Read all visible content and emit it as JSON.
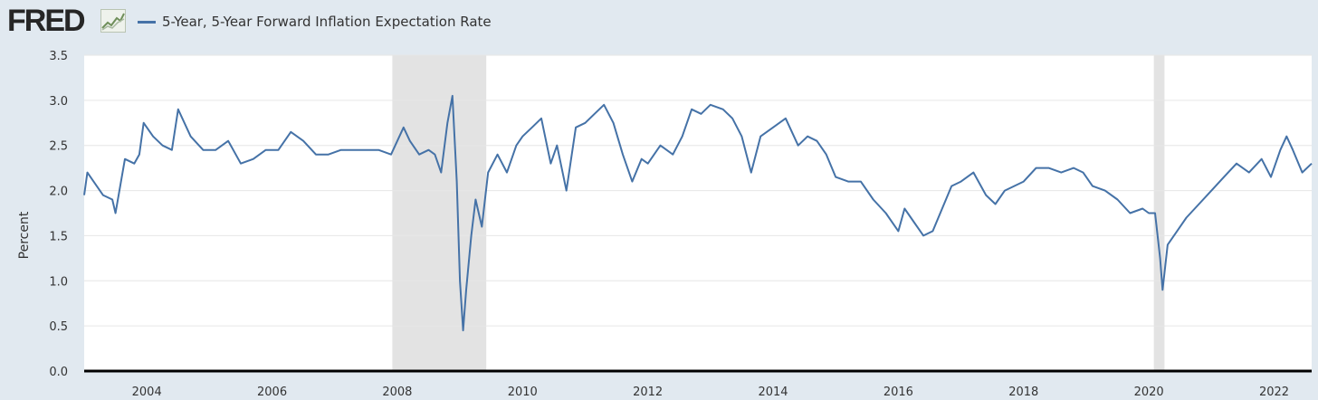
{
  "header": {
    "logo_text": "FRED",
    "logo_icon": "line-chart-icon",
    "legend_label": "5-Year, 5-Year Forward Inflation Expectation Rate"
  },
  "chart_data": {
    "type": "line",
    "title": "",
    "xlabel": "",
    "ylabel": "Percent",
    "xlim": [
      2003.0,
      2022.6
    ],
    "ylim": [
      0,
      3.5
    ],
    "grid": true,
    "legend": "top-left",
    "series_color": "#4572a7",
    "recession_color": "#e3e3e3",
    "yticks": [
      "0.0",
      "0.5",
      "1.0",
      "1.5",
      "2.0",
      "2.5",
      "3.0",
      "3.5"
    ],
    "xticks": [
      "2004",
      "2006",
      "2008",
      "2010",
      "2012",
      "2014",
      "2016",
      "2018",
      "2020",
      "2022"
    ],
    "recessions": [
      [
        2007.92,
        2009.42
      ],
      [
        2020.08,
        2020.25
      ]
    ],
    "series": [
      {
        "x": [
          2003.0,
          2003.05,
          2003.15,
          2003.3,
          2003.45,
          2003.5,
          2003.65,
          2003.8,
          2003.88,
          2003.95,
          2004.1,
          2004.25,
          2004.4,
          2004.5,
          2004.7,
          2004.9,
          2005.1,
          2005.3,
          2005.5,
          2005.7,
          2005.9,
          2006.1,
          2006.3,
          2006.5,
          2006.7,
          2006.9,
          2007.1,
          2007.3,
          2007.5,
          2007.7,
          2007.9,
          2008.1,
          2008.2,
          2008.35,
          2008.5,
          2008.6,
          2008.7,
          2008.8,
          2008.88,
          2008.95,
          2009.0,
          2009.05,
          2009.1,
          2009.18,
          2009.25,
          2009.35,
          2009.45,
          2009.6,
          2009.75,
          2009.9,
          2010.0,
          2010.15,
          2010.3,
          2010.45,
          2010.55,
          2010.7,
          2010.85,
          2011.0,
          2011.15,
          2011.3,
          2011.45,
          2011.6,
          2011.75,
          2011.9,
          2012.0,
          2012.2,
          2012.4,
          2012.55,
          2012.7,
          2012.85,
          2013.0,
          2013.2,
          2013.35,
          2013.5,
          2013.65,
          2013.8,
          2014.0,
          2014.2,
          2014.4,
          2014.55,
          2014.7,
          2014.85,
          2015.0,
          2015.2,
          2015.4,
          2015.6,
          2015.8,
          2016.0,
          2016.1,
          2016.25,
          2016.4,
          2016.55,
          2016.7,
          2016.85,
          2017.0,
          2017.2,
          2017.4,
          2017.55,
          2017.7,
          2017.85,
          2018.0,
          2018.2,
          2018.4,
          2018.6,
          2018.8,
          2018.95,
          2019.1,
          2019.3,
          2019.5,
          2019.7,
          2019.9,
          2020.0,
          2020.1,
          2020.18,
          2020.22,
          2020.3,
          2020.45,
          2020.6,
          2020.8,
          2021.0,
          2021.2,
          2021.4,
          2021.6,
          2021.8,
          2021.95,
          2022.1,
          2022.2,
          2022.3,
          2022.45,
          2022.6
        ],
        "values": [
          1.95,
          2.2,
          2.1,
          1.95,
          1.9,
          1.75,
          2.35,
          2.3,
          2.4,
          2.75,
          2.6,
          2.5,
          2.45,
          2.9,
          2.6,
          2.45,
          2.45,
          2.55,
          2.3,
          2.35,
          2.45,
          2.45,
          2.65,
          2.55,
          2.4,
          2.4,
          2.45,
          2.45,
          2.45,
          2.45,
          2.4,
          2.7,
          2.55,
          2.4,
          2.45,
          2.4,
          2.2,
          2.75,
          3.05,
          2.1,
          1.0,
          0.45,
          0.9,
          1.5,
          1.9,
          1.6,
          2.2,
          2.4,
          2.2,
          2.5,
          2.6,
          2.7,
          2.8,
          2.3,
          2.5,
          2.0,
          2.7,
          2.75,
          2.85,
          2.95,
          2.75,
          2.4,
          2.1,
          2.35,
          2.3,
          2.5,
          2.4,
          2.6,
          2.9,
          2.85,
          2.95,
          2.9,
          2.8,
          2.6,
          2.2,
          2.6,
          2.7,
          2.8,
          2.5,
          2.6,
          2.55,
          2.4,
          2.15,
          2.1,
          2.1,
          1.9,
          1.75,
          1.55,
          1.8,
          1.65,
          1.5,
          1.55,
          1.8,
          2.05,
          2.1,
          2.2,
          1.95,
          1.85,
          2.0,
          2.05,
          2.1,
          2.25,
          2.25,
          2.2,
          2.25,
          2.2,
          2.05,
          2.0,
          1.9,
          1.75,
          1.8,
          1.75,
          1.75,
          1.25,
          0.9,
          1.4,
          1.55,
          1.7,
          1.85,
          2.0,
          2.15,
          2.3,
          2.2,
          2.35,
          2.15,
          2.45,
          2.6,
          2.45,
          2.2,
          2.3
        ]
      }
    ]
  }
}
